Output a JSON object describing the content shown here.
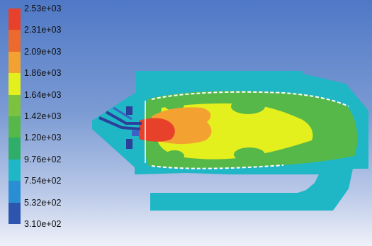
{
  "colors": {
    "background_top": "#4f78c6",
    "background_bottom": "#eef1f8",
    "cyan": "#1fb6c6",
    "green": "#57b84a",
    "yellow": "#e4ef1e",
    "orange": "#f3a231",
    "red": "#e8412b",
    "blue_dark": "#2c3f9a"
  },
  "colorbar": {
    "labels": [
      "2.53e+03",
      "2.31e+03",
      "2.09e+03",
      "1.86e+03",
      "1.64e+03",
      "1.42e+03",
      "1.20e+03",
      "9.76e+02",
      "7.54e+02",
      "5.32e+02",
      "3.10e+02"
    ],
    "swatch_colors": [
      "#e8412b",
      "#ec6a2e",
      "#f3a231",
      "#e4ef1e",
      "#7dc23e",
      "#57b84a",
      "#2fae6a",
      "#1fb6c6",
      "#2a8fd2",
      "#2d55ad"
    ]
  },
  "icons": {
    "contour": "combustor-temperature-contour"
  }
}
